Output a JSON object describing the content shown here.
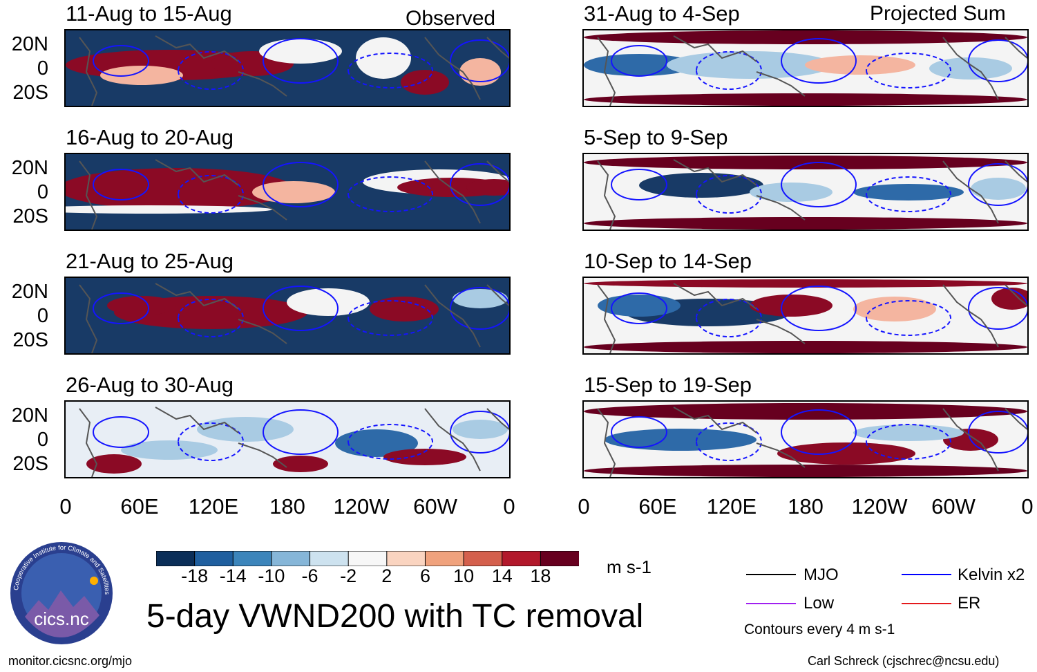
{
  "chart_data": {
    "type": "heatmap",
    "title": "5-day VWND200 with TC removal",
    "units": "m s-1",
    "left_tag": "Observed",
    "right_tag": "Projected Sum",
    "x_ticks": [
      "0",
      "60E",
      "120E",
      "180",
      "120W",
      "60W",
      "0"
    ],
    "y_ticks": [
      "20N",
      "0",
      "20S"
    ],
    "panels_left": [
      {
        "title": "11-Aug to 15-Aug"
      },
      {
        "title": "16-Aug to 20-Aug"
      },
      {
        "title": "21-Aug to 25-Aug"
      },
      {
        "title": "26-Aug to 30-Aug"
      }
    ],
    "panels_right": [
      {
        "title": "31-Aug to 4-Sep"
      },
      {
        "title": "5-Sep to 9-Sep"
      },
      {
        "title": "10-Sep to 14-Sep"
      },
      {
        "title": "15-Sep to 19-Sep"
      }
    ],
    "colorbar": {
      "ticks": [
        "-18",
        "-14",
        "-10",
        "-6",
        "-2",
        "2",
        "6",
        "10",
        "14",
        "18"
      ],
      "colors": [
        "#0b2e58",
        "#1f5f9f",
        "#3c85bb",
        "#86b6d8",
        "#cde2ef",
        "#f7f7f7",
        "#fad4c0",
        "#f0a27d",
        "#d4604d",
        "#b2182b",
        "#67001f"
      ]
    },
    "legend": [
      {
        "label": "MJO",
        "color": "#000000"
      },
      {
        "label": "Kelvin x2",
        "color": "#0000ff"
      },
      {
        "label": "Low",
        "color": "#a020f0"
      },
      {
        "label": "ER",
        "color": "#e41a1c"
      }
    ],
    "contour_note": "Contours every 4 m s-1"
  },
  "logo": {
    "text": "cics.nc",
    "ring_text": "Cooperative Institute for Climate and Satellites"
  },
  "footer": {
    "left": "monitor.cicsnc.org/mjo",
    "right": "Carl Schreck (cjschrec@ncsu.edu)"
  }
}
